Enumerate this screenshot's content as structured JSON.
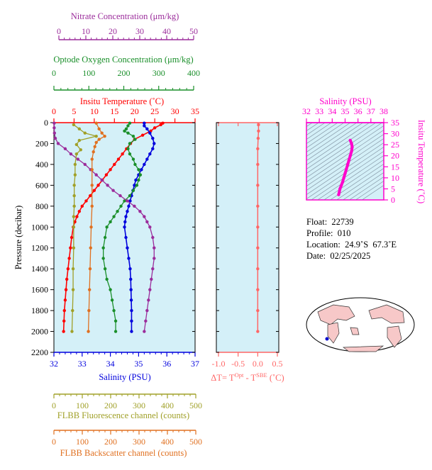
{
  "colors": {
    "nitrate": "#9b2c9b",
    "oxygen": "#1a8f2a",
    "temperature": "#ff0000",
    "salinity": "#0000dd",
    "fluorescence": "#a0a028",
    "backscatter": "#e07020",
    "dt": "#ff6666",
    "ts": "#ff00cc",
    "panel_bg": "#d4f0f8",
    "land": "#f7c8c8"
  },
  "labels": {
    "nitrate_title": "Nitrate Concentration (μm/kg)",
    "oxygen_title": "Optode Oxygen Concentration (μm/kg)",
    "temperature_title": "Insitu Temperature (˚C)",
    "salinity_title": "Salinity (PSU)",
    "pressure_title": "Pressure (decibar)",
    "fluorescence_title": "FLBB Fluorescence channel (counts)",
    "backscatter_title": "FLBB Backscatter channel (counts)",
    "dt_title_prefix": "ΔT= T",
    "dt_sup1": "Opt",
    "dt_mid": " - T",
    "dt_sup2": "SBE",
    "dt_suffix": " (˚C)",
    "ts_top_title": "Salinity (PSU)",
    "ts_right_title": "Insitu Temperature (˚C)"
  },
  "info": {
    "float": "Float:  22739",
    "profile": "Profile:  010",
    "location": "Location:  24.9˚S  67.3˚E",
    "date": "Date:  02/25/2025"
  },
  "axes": {
    "nitrate_ticks": [
      "0",
      "10",
      "20",
      "30",
      "40",
      "50"
    ],
    "oxygen_ticks": [
      "0",
      "100",
      "200",
      "300",
      "400"
    ],
    "temperature_ticks": [
      "0",
      "5",
      "10",
      "15",
      "20",
      "25",
      "30",
      "35"
    ],
    "salinity_ticks": [
      "32",
      "33",
      "34",
      "35",
      "36",
      "37"
    ],
    "pressure_ticks": [
      "0",
      "200",
      "400",
      "600",
      "800",
      "1000",
      "1200",
      "1400",
      "1600",
      "1800",
      "2000",
      "2200"
    ],
    "flbb_ticks": [
      "0",
      "100",
      "200",
      "300",
      "400",
      "500"
    ],
    "dt_ticks": [
      "-1.0",
      "-0.5",
      "0.0",
      "0.5"
    ],
    "ts_sal_ticks": [
      "32",
      "33",
      "34",
      "35",
      "36",
      "37",
      "38"
    ],
    "ts_temp_ticks": [
      "0",
      "5",
      "10",
      "15",
      "20",
      "25",
      "30",
      "35"
    ]
  },
  "chart_data": [
    {
      "type": "line",
      "ylabel": "Pressure (decibar)",
      "ylim": [
        0,
        2200
      ],
      "y_inverted": true,
      "series": [
        {
          "name": "Insitu Temperature (˚C)",
          "xlim": [
            0,
            35
          ],
          "points": [
            [
              27.0,
              5
            ],
            [
              26.5,
              20
            ],
            [
              25.0,
              50
            ],
            [
              24.0,
              80
            ],
            [
              22.0,
              120
            ],
            [
              20.0,
              160
            ],
            [
              19.0,
              200
            ],
            [
              18.0,
              250
            ],
            [
              17.0,
              300
            ],
            [
              16.0,
              350
            ],
            [
              15.0,
              400
            ],
            [
              14.0,
              450
            ],
            [
              13.0,
              500
            ],
            [
              12.0,
              550
            ],
            [
              11.0,
              600
            ],
            [
              10.0,
              650
            ],
            [
              9.0,
              700
            ],
            [
              8.0,
              750
            ],
            [
              7.0,
              800
            ],
            [
              6.3,
              850
            ],
            [
              5.7,
              900
            ],
            [
              5.2,
              950
            ],
            [
              4.8,
              1000
            ],
            [
              4.4,
              1100
            ],
            [
              4.1,
              1200
            ],
            [
              3.8,
              1300
            ],
            [
              3.5,
              1400
            ],
            [
              3.2,
              1500
            ],
            [
              3.0,
              1600
            ],
            [
              2.8,
              1700
            ],
            [
              2.6,
              1800
            ],
            [
              2.5,
              1900
            ],
            [
              2.4,
              2000
            ]
          ]
        },
        {
          "name": "Salinity (PSU)",
          "xlim": [
            32,
            37
          ],
          "points": [
            [
              35.2,
              5
            ],
            [
              35.2,
              30
            ],
            [
              35.3,
              60
            ],
            [
              35.4,
              100
            ],
            [
              35.5,
              150
            ],
            [
              35.55,
              200
            ],
            [
              35.5,
              250
            ],
            [
              35.4,
              300
            ],
            [
              35.3,
              350
            ],
            [
              35.2,
              400
            ],
            [
              35.1,
              450
            ],
            [
              35.0,
              500
            ],
            [
              34.9,
              550
            ],
            [
              34.85,
              600
            ],
            [
              34.8,
              650
            ],
            [
              34.75,
              700
            ],
            [
              34.7,
              750
            ],
            [
              34.65,
              800
            ],
            [
              34.6,
              850
            ],
            [
              34.55,
              900
            ],
            [
              34.52,
              950
            ],
            [
              34.5,
              1000
            ],
            [
              34.55,
              1100
            ],
            [
              34.6,
              1200
            ],
            [
              34.65,
              1300
            ],
            [
              34.7,
              1400
            ],
            [
              34.72,
              1500
            ],
            [
              34.73,
              1600
            ],
            [
              34.74,
              1700
            ],
            [
              34.75,
              1800
            ],
            [
              34.75,
              1900
            ],
            [
              34.75,
              2000
            ]
          ]
        },
        {
          "name": "Optode Oxygen Concentration (μm/kg)",
          "xlim": [
            0,
            400
          ],
          "points": [
            [
              215,
              5
            ],
            [
              210,
              30
            ],
            [
              205,
              60
            ],
            [
              200,
              80
            ],
            [
              210,
              100
            ],
            [
              225,
              130
            ],
            [
              230,
              160
            ],
            [
              215,
              200
            ],
            [
              210,
              250
            ],
            [
              215,
              300
            ],
            [
              225,
              350
            ],
            [
              230,
              400
            ],
            [
              240,
              450
            ],
            [
              245,
              500
            ],
            [
              240,
              550
            ],
            [
              235,
              600
            ],
            [
              225,
              650
            ],
            [
              215,
              700
            ],
            [
              200,
              750
            ],
            [
              190,
              800
            ],
            [
              180,
              850
            ],
            [
              170,
              900
            ],
            [
              160,
              950
            ],
            [
              150,
              1000
            ],
            [
              145,
              1100
            ],
            [
              140,
              1200
            ],
            [
              140,
              1300
            ],
            [
              145,
              1400
            ],
            [
              150,
              1500
            ],
            [
              160,
              1600
            ],
            [
              165,
              1700
            ],
            [
              170,
              1800
            ],
            [
              175,
              1900
            ],
            [
              175,
              2000
            ]
          ]
        },
        {
          "name": "Nitrate Concentration (μm/kg)",
          "xlim": [
            0,
            50
          ],
          "points": [
            [
              0.1,
              5
            ],
            [
              0.1,
              50
            ],
            [
              0.2,
              100
            ],
            [
              0.5,
              150
            ],
            [
              1.5,
              200
            ],
            [
              4.0,
              250
            ],
            [
              6.0,
              300
            ],
            [
              8.5,
              350
            ],
            [
              11.0,
              400
            ],
            [
              13.0,
              450
            ],
            [
              15.0,
              500
            ],
            [
              17.0,
              550
            ],
            [
              19.0,
              600
            ],
            [
              21.0,
              650
            ],
            [
              23.5,
              700
            ],
            [
              26.0,
              750
            ],
            [
              28.5,
              800
            ],
            [
              30.5,
              850
            ],
            [
              32.0,
              900
            ],
            [
              33.0,
              950
            ],
            [
              34.0,
              1000
            ],
            [
              35.0,
              1100
            ],
            [
              35.5,
              1200
            ],
            [
              35.5,
              1300
            ],
            [
              35.0,
              1400
            ],
            [
              34.5,
              1500
            ],
            [
              34.0,
              1600
            ],
            [
              33.5,
              1700
            ],
            [
              33.0,
              1800
            ],
            [
              32.5,
              1900
            ],
            [
              32.0,
              2000
            ]
          ]
        },
        {
          "name": "FLBB Fluorescence channel (counts)",
          "xlim": [
            0,
            500
          ],
          "points": [
            [
              70,
              20
            ],
            [
              90,
              60
            ],
            [
              110,
              100
            ],
            [
              150,
              130
            ],
            [
              90,
              170
            ],
            [
              80,
              210
            ],
            [
              95,
              260
            ],
            [
              80,
              300
            ],
            [
              75,
              400
            ],
            [
              75,
              500
            ],
            [
              72,
              600
            ],
            [
              72,
              700
            ],
            [
              72,
              800
            ],
            [
              70,
              900
            ],
            [
              70,
              1000
            ],
            [
              70,
              1200
            ],
            [
              68,
              1400
            ],
            [
              68,
              1600
            ],
            [
              66,
              1800
            ],
            [
              64,
              2000
            ]
          ]
        },
        {
          "name": "FLBB Backscatter channel (counts)",
          "xlim": [
            0,
            500
          ],
          "points": [
            [
              150,
              5
            ],
            [
              160,
              60
            ],
            [
              170,
              100
            ],
            [
              180,
              130
            ],
            [
              160,
              160
            ],
            [
              150,
              190
            ],
            [
              145,
              230
            ],
            [
              140,
              280
            ],
            [
              135,
              350
            ],
            [
              135,
              450
            ],
            [
              135,
              600
            ],
            [
              135,
              800
            ],
            [
              132,
              1000
            ],
            [
              130,
              1200
            ],
            [
              128,
              1400
            ],
            [
              126,
              1600
            ],
            [
              124,
              1800
            ],
            [
              122,
              2000
            ]
          ]
        },
        {
          "name": "ΔT= T Opt - T SBE (˚C)",
          "xlim": [
            -1.0,
            0.5
          ],
          "points": [
            [
              0.02,
              20
            ],
            [
              0.02,
              80
            ],
            [
              0.01,
              150
            ],
            [
              0.0,
              250
            ],
            [
              0.0,
              400
            ],
            [
              0.0,
              600
            ],
            [
              0.0,
              800
            ],
            [
              0.0,
              1000
            ],
            [
              0.0,
              1200
            ],
            [
              0.0,
              1400
            ],
            [
              0.0,
              1600
            ],
            [
              0.0,
              1800
            ],
            [
              0.0,
              2000
            ]
          ]
        }
      ]
    },
    {
      "type": "scatter",
      "xlabel": "Salinity (PSU)",
      "ylabel": "Insitu Temperature (˚C)",
      "xlim": [
        32,
        38
      ],
      "ylim": [
        0,
        35
      ],
      "points": [
        [
          34.5,
          2.4
        ],
        [
          34.55,
          3.5
        ],
        [
          34.6,
          5
        ],
        [
          34.7,
          6.5
        ],
        [
          34.8,
          8
        ],
        [
          34.9,
          10
        ],
        [
          35.0,
          12
        ],
        [
          35.1,
          14
        ],
        [
          35.2,
          16
        ],
        [
          35.3,
          18
        ],
        [
          35.4,
          20
        ],
        [
          35.5,
          22
        ],
        [
          35.55,
          24
        ],
        [
          35.5,
          25.5
        ],
        [
          35.4,
          27
        ]
      ]
    }
  ]
}
